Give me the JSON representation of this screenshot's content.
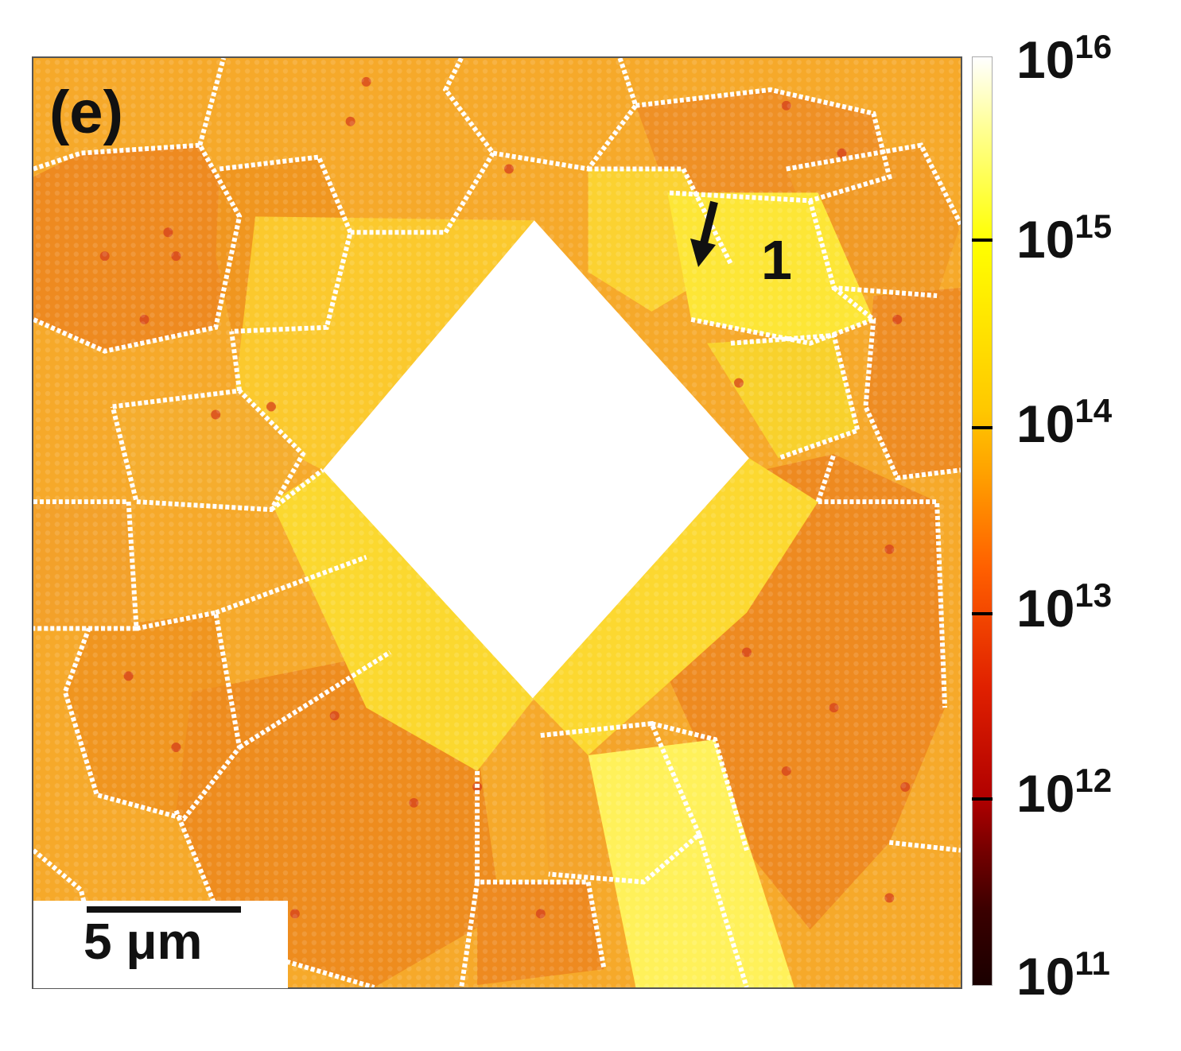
{
  "panel_label": "(e)",
  "region_label": "1",
  "scale_bar": {
    "label": "5 μm"
  },
  "colorbar": {
    "ticks": [
      {
        "base": "10",
        "exp": "16"
      },
      {
        "base": "10",
        "exp": "15"
      },
      {
        "base": "10",
        "exp": "14"
      },
      {
        "base": "10",
        "exp": "13"
      },
      {
        "base": "10",
        "exp": "12"
      },
      {
        "base": "10",
        "exp": "11"
      }
    ],
    "colors": {
      "low": "#1a0000",
      "mid": "#ff8c00",
      "high": "#ffff00",
      "top": "#ffffff"
    }
  },
  "icons": {
    "arrow": "arrow-down-left-icon"
  }
}
